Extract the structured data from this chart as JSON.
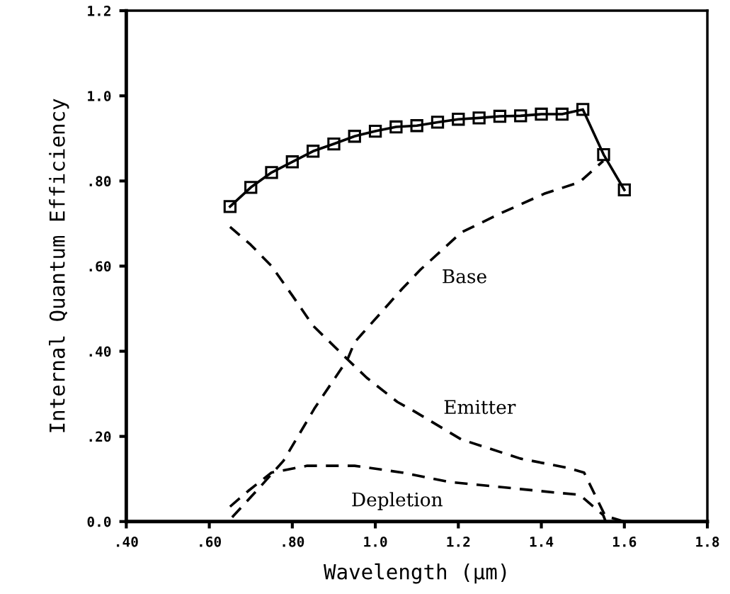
{
  "chart_data": {
    "type": "line",
    "xlabel": "Wavelength (μm)",
    "ylabel": "Internal Quantum Efficiency",
    "xlim": [
      0.4,
      1.8
    ],
    "ylim": [
      0,
      1.2
    ],
    "xticks": [
      {
        "value": 0.4,
        "label": ".40"
      },
      {
        "value": 0.6,
        "label": ".60"
      },
      {
        "value": 0.8,
        "label": ".80"
      },
      {
        "value": 1.0,
        "label": "1.0"
      },
      {
        "value": 1.2,
        "label": "1.2"
      },
      {
        "value": 1.4,
        "label": "1.4"
      },
      {
        "value": 1.6,
        "label": "1.6"
      },
      {
        "value": 1.8,
        "label": "1.8"
      }
    ],
    "yticks": [
      {
        "value": 0,
        "label": "0.0"
      },
      {
        "value": 0.2,
        "label": ".20"
      },
      {
        "value": 0.4,
        "label": ".40"
      },
      {
        "value": 0.6,
        "label": ".60"
      },
      {
        "value": 0.8,
        "label": ".80"
      },
      {
        "value": 1.0,
        "label": "1.0"
      },
      {
        "value": 1.2,
        "label": "1.2"
      }
    ],
    "grid": false,
    "series": [
      {
        "color": "#000000",
        "marker": "square",
        "line_style": "solid",
        "x": [
          0.65,
          0.7,
          0.75,
          0.8,
          0.85,
          0.9,
          0.95,
          1.0,
          1.05,
          1.1,
          1.15,
          1.2,
          1.25,
          1.3,
          1.35,
          1.4,
          1.45,
          1.5,
          1.55,
          1.6
        ],
        "values": [
          0.74,
          0.785,
          0.82,
          0.845,
          0.87,
          0.887,
          0.905,
          0.917,
          0.927,
          0.93,
          0.938,
          0.945,
          0.948,
          0.952,
          0.953,
          0.957,
          0.957,
          0.968,
          0.862,
          0.779
        ]
      },
      {
        "color": "#000000",
        "marker": "none",
        "line_style": "dashed",
        "x": [
          0.655,
          0.723,
          0.779,
          0.853,
          0.933,
          0.95,
          1.065,
          1.109,
          1.207,
          1.304,
          1.407,
          1.492,
          1.549
        ],
        "values": [
          0.01,
          0.082,
          0.143,
          0.265,
          0.381,
          0.421,
          0.547,
          0.592,
          0.679,
          0.725,
          0.77,
          0.797,
          0.847
        ]
      },
      {
        "color": "#000000",
        "marker": "none",
        "line_style": "dashed",
        "x": [
          0.65,
          0.7,
          0.75,
          0.8,
          0.85,
          0.933,
          0.979,
          1.053,
          1.092,
          1.207,
          1.349,
          1.463,
          1.503,
          1.554,
          1.6
        ],
        "values": [
          0.692,
          0.65,
          0.6,
          0.531,
          0.46,
          0.381,
          0.338,
          0.281,
          0.26,
          0.193,
          0.148,
          0.126,
          0.115,
          0.013,
          0.0
        ]
      },
      {
        "color": "#000000",
        "marker": "none",
        "line_style": "dashed",
        "x": [
          0.65,
          0.694,
          0.75,
          0.836,
          0.894,
          0.95,
          1.065,
          1.178,
          1.292,
          1.434,
          1.492,
          1.549,
          1.555
        ],
        "values": [
          0.035,
          0.072,
          0.115,
          0.131,
          0.131,
          0.131,
          0.115,
          0.093,
          0.082,
          0.068,
          0.063,
          0.015,
          0.0
        ]
      }
    ],
    "annotations": [
      "Base",
      "Emitter",
      "Depletion"
    ]
  }
}
